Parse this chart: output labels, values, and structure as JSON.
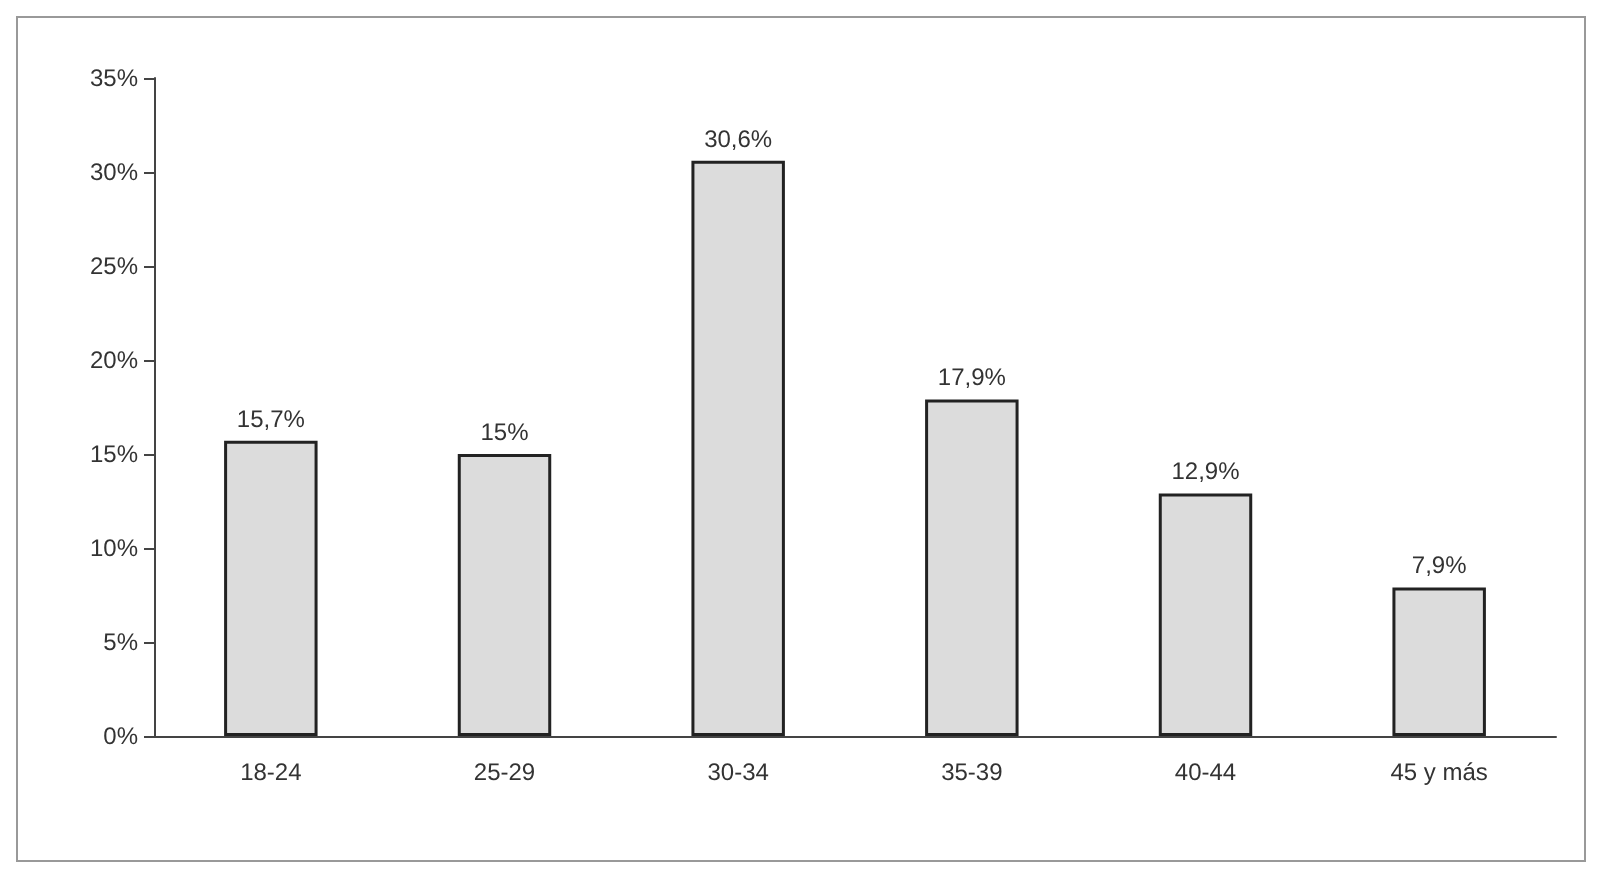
{
  "chart_data": {
    "type": "bar",
    "categories": [
      "18-24",
      "25-29",
      "30-34",
      "35-39",
      "40-44",
      "45 y más"
    ],
    "values": [
      15.7,
      15,
      30.6,
      17.9,
      12.9,
      7.9
    ],
    "value_labels": [
      "15,7%",
      "15%",
      "30,6%",
      "17,9%",
      "12,9%",
      "7,9%"
    ],
    "color": "#dcdcdc",
    "ylim": [
      0,
      35
    ],
    "yticks": [
      {
        "value": 0,
        "label": "0%"
      },
      {
        "value": 5,
        "label": "5%"
      },
      {
        "value": 10,
        "label": "10%"
      },
      {
        "value": 15,
        "label": "15%"
      },
      {
        "value": 20,
        "label": "20%"
      },
      {
        "value": 25,
        "label": "25%"
      },
      {
        "value": 30,
        "label": "30%"
      },
      {
        "value": 35,
        "label": "35%"
      }
    ],
    "grid": false
  }
}
